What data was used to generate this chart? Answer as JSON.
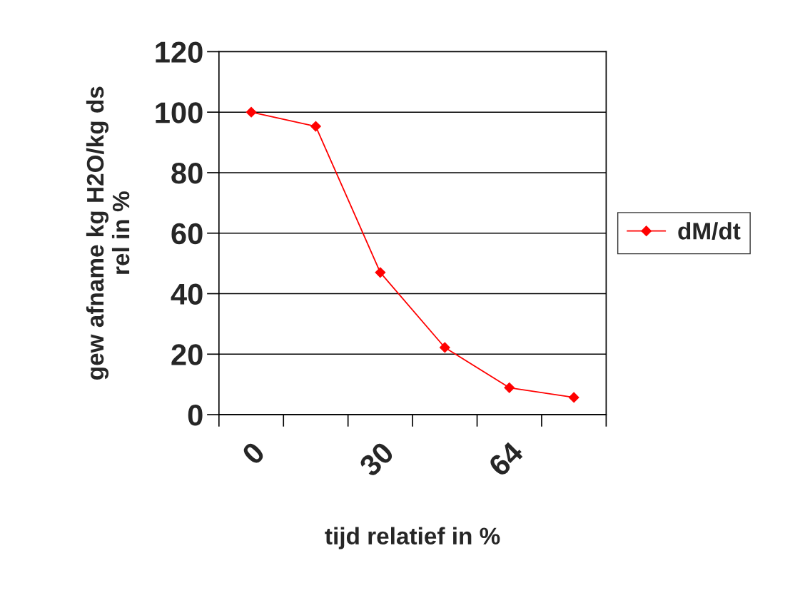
{
  "chart_data": {
    "type": "line",
    "xlabel": "tijd relatief in %",
    "ylabel": "gew afname kg H2O/kg ds\nrel in %",
    "categories": [
      "0",
      null,
      "30",
      null,
      "64",
      null
    ],
    "series": [
      {
        "name": "dM/dt",
        "color": "#ff0000",
        "values": [
          100,
          95.3,
          47,
          22.2,
          8.9,
          5.7
        ]
      }
    ],
    "ylim": [
      0,
      120
    ],
    "yticks": [
      0,
      20,
      40,
      60,
      80,
      100,
      120
    ],
    "grid": "y",
    "legend": "right",
    "marker": "diamond",
    "line_style": "solid"
  }
}
